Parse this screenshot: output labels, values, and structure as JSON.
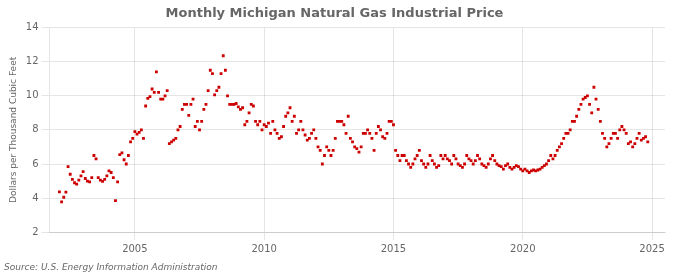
{
  "chart_data": {
    "type": "scatter",
    "title": "Monthly Michigan Natural Gas Industrial Price",
    "ylabel": "Dollars per Thousand Cubic Feet",
    "source": "Source: U.S. Energy Information Administration",
    "color": "#cc0000",
    "marker": "square",
    "grid": true,
    "xlim": [
      2001.7,
      2025.5
    ],
    "xticks": [
      2005,
      2010,
      2015,
      2020,
      2025
    ],
    "ylim": [
      2,
      14
    ],
    "yticks": [
      2,
      4,
      6,
      8,
      10,
      12,
      14
    ],
    "x": [
      2002.083,
      2002.167,
      2002.25,
      2002.333,
      2002.417,
      2002.5,
      2002.583,
      2002.667,
      2002.75,
      2002.833,
      2002.917,
      2003.0,
      2003.083,
      2003.167,
      2003.25,
      2003.333,
      2003.417,
      2003.5,
      2003.583,
      2003.667,
      2003.75,
      2003.833,
      2003.917,
      2004.0,
      2004.083,
      2004.167,
      2004.25,
      2004.333,
      2004.417,
      2004.5,
      2004.583,
      2004.667,
      2004.75,
      2004.833,
      2004.917,
      2005.0,
      2005.083,
      2005.167,
      2005.25,
      2005.333,
      2005.417,
      2005.5,
      2005.583,
      2005.667,
      2005.75,
      2005.833,
      2005.917,
      2006.0,
      2006.083,
      2006.167,
      2006.25,
      2006.333,
      2006.417,
      2006.5,
      2006.583,
      2006.667,
      2006.75,
      2006.833,
      2006.917,
      2007.0,
      2007.083,
      2007.167,
      2007.25,
      2007.333,
      2007.417,
      2007.5,
      2007.583,
      2007.667,
      2007.75,
      2007.833,
      2007.917,
      2008.0,
      2008.083,
      2008.167,
      2008.25,
      2008.333,
      2008.417,
      2008.5,
      2008.583,
      2008.667,
      2008.75,
      2008.833,
      2008.917,
      2009.0,
      2009.083,
      2009.167,
      2009.25,
      2009.333,
      2009.417,
      2009.5,
      2009.583,
      2009.667,
      2009.75,
      2009.833,
      2009.917,
      2010.0,
      2010.083,
      2010.167,
      2010.25,
      2010.333,
      2010.417,
      2010.5,
      2010.583,
      2010.667,
      2010.75,
      2010.833,
      2010.917,
      2011.0,
      2011.083,
      2011.167,
      2011.25,
      2011.333,
      2011.417,
      2011.5,
      2011.583,
      2011.667,
      2011.75,
      2011.833,
      2011.917,
      2012.0,
      2012.083,
      2012.167,
      2012.25,
      2012.333,
      2012.417,
      2012.5,
      2012.583,
      2012.667,
      2012.75,
      2012.833,
      2012.917,
      2013.0,
      2013.083,
      2013.167,
      2013.25,
      2013.333,
      2013.417,
      2013.5,
      2013.583,
      2013.667,
      2013.75,
      2013.833,
      2013.917,
      2014.0,
      2014.083,
      2014.167,
      2014.25,
      2014.333,
      2014.417,
      2014.5,
      2014.583,
      2014.667,
      2014.75,
      2014.833,
      2014.917,
      2015.0,
      2015.083,
      2015.167,
      2015.25,
      2015.333,
      2015.417,
      2015.5,
      2015.583,
      2015.667,
      2015.75,
      2015.833,
      2015.917,
      2016.0,
      2016.083,
      2016.167,
      2016.25,
      2016.333,
      2016.417,
      2016.5,
      2016.583,
      2016.667,
      2016.75,
      2016.833,
      2016.917,
      2017.0,
      2017.083,
      2017.167,
      2017.25,
      2017.333,
      2017.417,
      2017.5,
      2017.583,
      2017.667,
      2017.75,
      2017.833,
      2017.917,
      2018.0,
      2018.083,
      2018.167,
      2018.25,
      2018.333,
      2018.417,
      2018.5,
      2018.583,
      2018.667,
      2018.75,
      2018.833,
      2018.917,
      2019.0,
      2019.083,
      2019.167,
      2019.25,
      2019.333,
      2019.417,
      2019.5,
      2019.583,
      2019.667,
      2019.75,
      2019.833,
      2019.917,
      2020.0,
      2020.083,
      2020.167,
      2020.25,
      2020.333,
      2020.417,
      2020.5,
      2020.583,
      2020.667,
      2020.75,
      2020.833,
      2020.917,
      2021.0,
      2021.083,
      2021.167,
      2021.25,
      2021.333,
      2021.417,
      2021.5,
      2021.583,
      2021.667,
      2021.75,
      2021.833,
      2021.917,
      2022.0,
      2022.083,
      2022.167,
      2022.25,
      2022.333,
      2022.417,
      2022.5,
      2022.583,
      2022.667,
      2022.75,
      2022.833,
      2022.917,
      2023.0,
      2023.083,
      2023.167,
      2023.25,
      2023.333,
      2023.417,
      2023.5,
      2023.583,
      2023.667,
      2023.75,
      2023.833,
      2023.917,
      2024.0,
      2024.083,
      2024.167,
      2024.25,
      2024.333,
      2024.417,
      2024.5,
      2024.583,
      2024.667,
      2024.75,
      2024.833
    ],
    "values": [
      4.37,
      3.78,
      4.05,
      4.35,
      5.85,
      5.4,
      5.1,
      4.9,
      4.82,
      5.05,
      5.3,
      5.55,
      5.15,
      5.0,
      4.95,
      5.2,
      6.5,
      6.3,
      5.2,
      5.05,
      4.98,
      5.1,
      5.3,
      5.6,
      5.5,
      5.2,
      3.85,
      4.95,
      6.55,
      6.65,
      6.25,
      6.0,
      6.5,
      7.3,
      7.5,
      7.9,
      7.75,
      7.85,
      8.0,
      7.5,
      9.4,
      9.85,
      9.95,
      10.4,
      10.2,
      11.4,
      10.2,
      9.8,
      9.8,
      10.0,
      10.3,
      7.2,
      7.3,
      7.4,
      7.5,
      8.0,
      8.2,
      9.2,
      9.5,
      9.5,
      8.85,
      9.5,
      9.8,
      8.2,
      8.5,
      8.0,
      8.5,
      9.2,
      9.5,
      10.3,
      11.5,
      11.3,
      10.05,
      10.3,
      10.5,
      11.3,
      12.35,
      11.5,
      10.0,
      9.5,
      9.5,
      9.5,
      9.55,
      9.35,
      9.2,
      9.3,
      8.3,
      8.5,
      9.0,
      9.5,
      9.4,
      8.5,
      8.3,
      8.5,
      8.0,
      8.3,
      8.2,
      8.4,
      7.8,
      8.5,
      8.0,
      7.8,
      7.5,
      7.6,
      8.2,
      8.8,
      9.0,
      9.3,
      8.5,
      8.8,
      7.8,
      8.0,
      8.5,
      8.0,
      7.7,
      7.4,
      7.5,
      7.8,
      8.0,
      7.5,
      7.0,
      6.8,
      6.0,
      6.5,
      7.0,
      6.8,
      6.5,
      6.8,
      7.5,
      8.5,
      8.5,
      8.5,
      8.3,
      7.8,
      8.8,
      7.5,
      7.3,
      7.0,
      6.9,
      6.7,
      7.0,
      7.8,
      7.8,
      8.0,
      7.8,
      7.5,
      6.8,
      7.8,
      8.2,
      8.0,
      7.6,
      7.5,
      7.8,
      8.5,
      8.5,
      8.3,
      6.8,
      6.5,
      6.2,
      6.5,
      6.5,
      6.2,
      6.0,
      5.8,
      6.0,
      6.3,
      6.5,
      6.8,
      6.2,
      6.0,
      5.8,
      6.0,
      6.5,
      6.2,
      6.0,
      5.8,
      5.9,
      6.5,
      6.3,
      6.5,
      6.3,
      6.2,
      6.0,
      6.5,
      6.3,
      6.0,
      5.9,
      5.8,
      6.0,
      6.5,
      6.3,
      6.2,
      6.0,
      6.2,
      6.5,
      6.3,
      6.0,
      5.9,
      5.8,
      6.0,
      6.3,
      6.5,
      6.2,
      6.0,
      5.9,
      5.85,
      5.7,
      5.9,
      6.0,
      5.8,
      5.7,
      5.8,
      5.9,
      5.85,
      5.7,
      5.6,
      5.7,
      5.6,
      5.5,
      5.6,
      5.65,
      5.6,
      5.65,
      5.7,
      5.8,
      5.9,
      6.0,
      6.2,
      6.5,
      6.3,
      6.5,
      6.8,
      7.0,
      7.2,
      7.5,
      7.8,
      7.8,
      8.0,
      8.5,
      8.5,
      8.8,
      9.2,
      9.5,
      9.8,
      9.9,
      10.0,
      9.5,
      9.0,
      10.5,
      9.8,
      9.2,
      8.5,
      7.8,
      7.5,
      7.0,
      7.2,
      7.5,
      7.8,
      7.8,
      7.5,
      8.0,
      8.2,
      8.0,
      7.8,
      7.2,
      7.3,
      7.0,
      7.2,
      7.5,
      7.8,
      7.4,
      7.5,
      7.6,
      7.3
    ]
  }
}
